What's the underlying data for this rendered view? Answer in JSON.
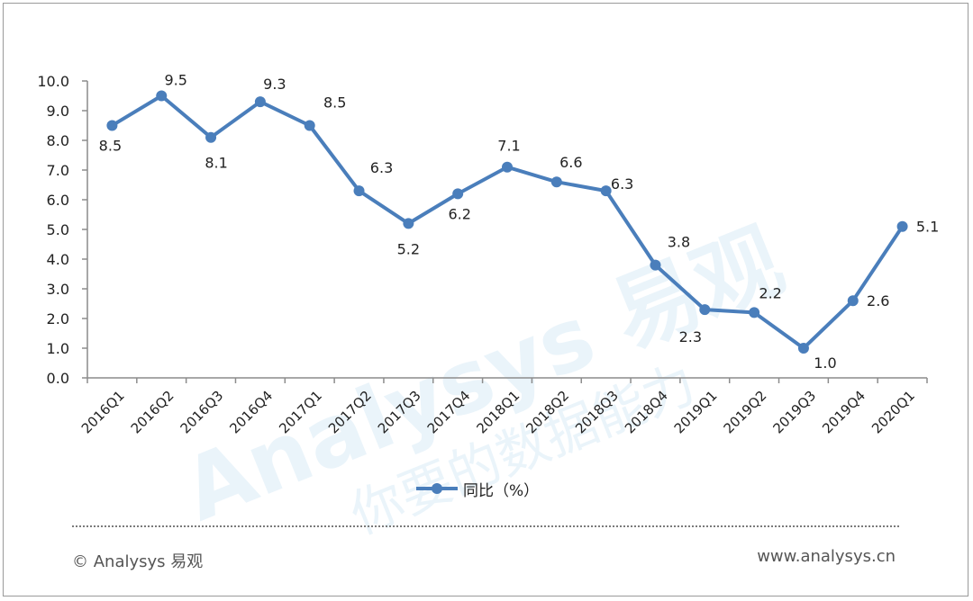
{
  "chart_data": {
    "type": "line",
    "categories": [
      "2016Q1",
      "2016Q2",
      "2016Q3",
      "2016Q4",
      "2017Q1",
      "2017Q2",
      "2017Q3",
      "2017Q4",
      "2018Q1",
      "2018Q2",
      "2018Q3",
      "2018Q4",
      "2019Q1",
      "2019Q2",
      "2019Q3",
      "2019Q4",
      "2020Q1"
    ],
    "series": [
      {
        "name": "同比（%）",
        "values": [
          8.5,
          9.5,
          8.1,
          9.3,
          8.5,
          6.3,
          5.2,
          6.2,
          7.1,
          6.6,
          6.3,
          3.8,
          2.3,
          2.2,
          1.0,
          2.6,
          5.1
        ],
        "color": "#4a7ebb"
      }
    ],
    "ylim": [
      0,
      10
    ],
    "yticks": [
      "0.0",
      "1.0",
      "2.0",
      "3.0",
      "4.0",
      "5.0",
      "6.0",
      "7.0",
      "8.0",
      "9.0",
      "10.0"
    ],
    "data_labels": [
      "8.5",
      "9.5",
      "8.1",
      "9.3",
      "8.5",
      "6.3",
      "5.2",
      "6.2",
      "7.1",
      "6.6",
      "6.3",
      "3.8",
      "2.3",
      "2.2",
      "1.0",
      "2.6",
      "5.1"
    ],
    "grid": false,
    "legend": "bottom-center",
    "title": "",
    "xlabel": "",
    "ylabel": ""
  },
  "legend_label": "同比（%）",
  "footer": {
    "copyright": "© Analysys 易观",
    "website": "www.analysys.cn"
  },
  "watermark": {
    "brand": "Analysys 易观",
    "slogan": "你要的数据能力"
  }
}
